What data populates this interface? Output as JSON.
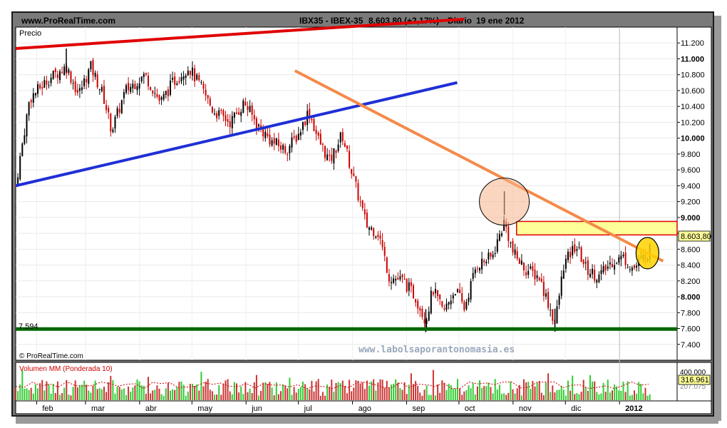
{
  "header": {
    "site": "www.ProRealTime.com",
    "instrument": "IBX35 - IBEX-35",
    "quote": "8.603,80 (+2,17%)",
    "period": "Diario",
    "date": "19 ene 2012"
  },
  "price_panel": {
    "label": "Precio",
    "last_value": "8.603,80",
    "support_label": "7.594",
    "footer_brand": "© ProRealTime.com",
    "watermark": "www.labolsaporantonomasia.es"
  },
  "volume_panel": {
    "label": "Volumen MM (Ponderada 10)",
    "value": "316.961",
    "upper_tick": "400.000",
    "lower_tick": "207.075"
  },
  "colors": {
    "frame": "#7a7a7a",
    "candle_up": "#000000",
    "candle_down": "#cc0000",
    "red_trendline": "#e00000",
    "blue_trendline": "#1f2fd6",
    "orange_trendline": "#f58a4a",
    "support_line": "#006600",
    "resistance_zone": "#ffff99",
    "volume_up": "#33cc33",
    "volume_down": "#cc3333"
  },
  "chart_data": {
    "type": "candlestick",
    "title": "IBX35 - IBEX-35",
    "period": "Diario",
    "ylim": [
      7200,
      11400
    ],
    "y_ticks": [
      7400,
      7600,
      7800,
      8000,
      8200,
      8400,
      8600,
      8800,
      9000,
      9200,
      9400,
      9600,
      9800,
      10000,
      10200,
      10400,
      10600,
      10800,
      11000,
      11200
    ],
    "y_tick_labels": [
      "7.400",
      "7.600",
      "7.800",
      "8.000",
      "8.200",
      "8.400",
      "8.600",
      "8.800",
      "9.000",
      "9.200",
      "9.400",
      "9.600",
      "9.800",
      "10.000",
      "10.200",
      "10.400",
      "10.600",
      "10.800",
      "11.000",
      "11.200"
    ],
    "y_bold_ticks": [
      "8.000",
      "9.000",
      "10.000",
      "11.000"
    ],
    "x_month_labels": [
      "feb",
      "mar",
      "abr",
      "may",
      "jun",
      "jul",
      "ago",
      "sep",
      "oct",
      "nov",
      "dic",
      "2012"
    ],
    "close_path": [
      [
        "2011-01-20",
        9400
      ],
      [
        "2011-01-28",
        10500
      ],
      [
        "2011-02-08",
        10750
      ],
      [
        "2011-02-18",
        10900
      ],
      [
        "2011-02-25",
        10550
      ],
      [
        "2011-03-04",
        10900
      ],
      [
        "2011-03-11",
        10550
      ],
      [
        "2011-03-16",
        10100
      ],
      [
        "2011-03-24",
        10600
      ],
      [
        "2011-04-04",
        10800
      ],
      [
        "2011-04-13",
        10450
      ],
      [
        "2011-04-20",
        10700
      ],
      [
        "2011-04-29",
        10900
      ],
      [
        "2011-05-06",
        10650
      ],
      [
        "2011-05-13",
        10350
      ],
      [
        "2011-05-23",
        10200
      ],
      [
        "2011-05-31",
        10450
      ],
      [
        "2011-06-08",
        10150
      ],
      [
        "2011-06-16",
        9950
      ],
      [
        "2011-06-24",
        9850
      ],
      [
        "2011-07-01",
        10050
      ],
      [
        "2011-07-07",
        10350
      ],
      [
        "2011-07-12",
        10000
      ],
      [
        "2011-07-19",
        9700
      ],
      [
        "2011-07-26",
        10050
      ],
      [
        "2011-08-02",
        9450
      ],
      [
        "2011-08-09",
        8900
      ],
      [
        "2011-08-16",
        8800
      ],
      [
        "2011-08-22",
        8250
      ],
      [
        "2011-08-30",
        8200
      ],
      [
        "2011-09-06",
        8000
      ],
      [
        "2011-09-12",
        7700
      ],
      [
        "2011-09-16",
        8100
      ],
      [
        "2011-09-22",
        7800
      ],
      [
        "2011-09-29",
        8100
      ],
      [
        "2011-10-04",
        7850
      ],
      [
        "2011-10-11",
        8400
      ],
      [
        "2011-10-20",
        8500
      ],
      [
        "2011-10-27",
        8950
      ],
      [
        "2011-11-01",
        8550
      ],
      [
        "2011-11-08",
        8350
      ],
      [
        "2011-11-16",
        8250
      ],
      [
        "2011-11-23",
        7800
      ],
      [
        "2011-11-25",
        7650
      ],
      [
        "2011-11-30",
        8400
      ],
      [
        "2011-12-07",
        8650
      ],
      [
        "2011-12-13",
        8350
      ],
      [
        "2011-12-20",
        8250
      ],
      [
        "2011-12-28",
        8450
      ],
      [
        "2012-01-03",
        8500
      ],
      [
        "2012-01-09",
        8350
      ],
      [
        "2012-01-13",
        8450
      ],
      [
        "2012-01-19",
        8604
      ]
    ],
    "key_lows": [
      [
        "2011-09-12",
        7594
      ],
      [
        "2011-11-25",
        7600
      ]
    ],
    "key_highs": [
      [
        "2011-02-18",
        11130
      ],
      [
        "2011-10-27",
        9330
      ]
    ],
    "support_level": 7594,
    "resistance_zone": [
      8780,
      8950
    ],
    "trendlines": [
      {
        "name": "red",
        "from": [
          "2011-01-20",
          11130
        ],
        "to": [
          "2011-10-04",
          11500
        ]
      },
      {
        "name": "blue",
        "from": [
          "2011-01-20",
          9400
        ],
        "to": [
          "2011-09-30",
          10700
        ]
      },
      {
        "name": "orange",
        "from": [
          "2011-06-29",
          10850
        ],
        "to": [
          "2012-01-26",
          8450
        ]
      }
    ],
    "highlight_circles": [
      {
        "date": "2011-10-27",
        "value": 9200
      },
      {
        "date": "2012-01-17",
        "value": 8550
      }
    ],
    "volume": {
      "label": "Volumen MM (Ponderada 10)",
      "ylim": [
        0,
        450000
      ],
      "last": 316961
    }
  }
}
